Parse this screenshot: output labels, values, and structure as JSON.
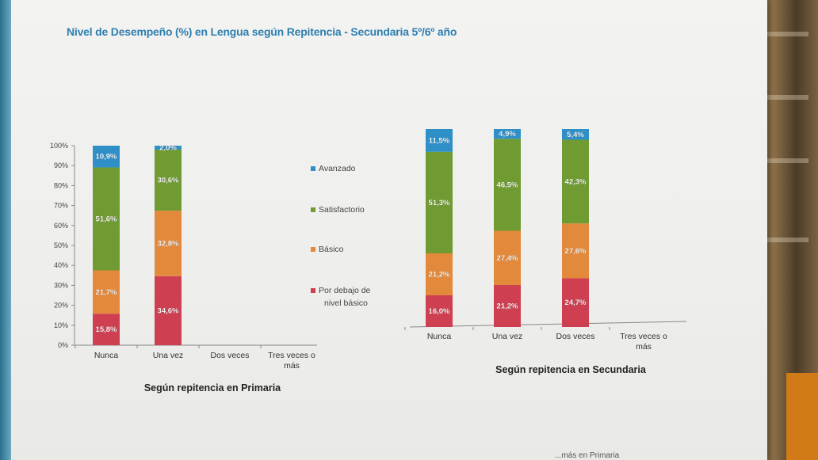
{
  "title": "Nivel de Desempeño (%) en Lengua según Repitencia - Secundaria 5º/6º año",
  "colors": {
    "Avanzado": "#2f8fc7",
    "Satisfactorio": "#6f9b32",
    "Básico": "#e3893b",
    "Por debajo de nivel básico": "#cf3f52"
  },
  "legend": [
    {
      "label": "Avanzado",
      "series": "Avanzado"
    },
    {
      "label": "Satisfactorio",
      "series": "Satisfactorio"
    },
    {
      "label": "Básico",
      "series": "Básico"
    },
    {
      "label": "Por debajo de",
      "label2": "nivel básico",
      "series": "Por debajo de nivel básico"
    }
  ],
  "footer_fragment": "...más en Primaria",
  "chart_data": [
    {
      "type": "bar",
      "stacked": true,
      "title": "",
      "xlabel": "Según repitencia en Primaria",
      "ylabel": "",
      "ylim": [
        0,
        100
      ],
      "yticks": [
        "0%",
        "10%",
        "20%",
        "30%",
        "40%",
        "50%",
        "60%",
        "70%",
        "80%",
        "90%",
        "100%"
      ],
      "categories": [
        "Nunca",
        "Una vez",
        "Dos veces",
        "Tres veces o más"
      ],
      "category_lines": [
        [
          "Nunca"
        ],
        [
          "Una vez"
        ],
        [
          "Dos veces"
        ],
        [
          "Tres veces o",
          "más"
        ]
      ],
      "series": [
        {
          "name": "Por debajo de nivel básico",
          "values": [
            15.8,
            34.6,
            null,
            null
          ],
          "labels": [
            "15,8%",
            "34,6%",
            "",
            ""
          ]
        },
        {
          "name": "Básico",
          "values": [
            21.7,
            32.8,
            null,
            null
          ],
          "labels": [
            "21,7%",
            "32,8%",
            "",
            ""
          ]
        },
        {
          "name": "Satisfactorio",
          "values": [
            51.6,
            30.6,
            null,
            null
          ],
          "labels": [
            "51,6%",
            "30,6%",
            "",
            ""
          ]
        },
        {
          "name": "Avanzado",
          "values": [
            10.9,
            2.0,
            null,
            null
          ],
          "labels": [
            "10,9%",
            "2,0%",
            "",
            ""
          ]
        }
      ],
      "grid": false,
      "legend": "right"
    },
    {
      "type": "bar",
      "stacked": true,
      "title": "",
      "xlabel": "Según repitencia en Secundaria",
      "ylabel": "",
      "ylim": [
        0,
        100
      ],
      "categories": [
        "Nunca",
        "Una vez",
        "Dos veces",
        "Tres veces o más"
      ],
      "category_lines": [
        [
          "Nunca"
        ],
        [
          "Una vez"
        ],
        [
          "Dos veces"
        ],
        [
          "Tres veces o",
          "más"
        ]
      ],
      "series": [
        {
          "name": "Por debajo de nivel básico",
          "values": [
            16.0,
            21.2,
            24.7,
            null
          ],
          "labels": [
            "16,0%",
            "21,2%",
            "24,7%",
            ""
          ]
        },
        {
          "name": "Básico",
          "values": [
            21.2,
            27.4,
            27.6,
            null
          ],
          "labels": [
            "21,2%",
            "27,4%",
            "27,6%",
            ""
          ]
        },
        {
          "name": "Satisfactorio",
          "values": [
            51.3,
            46.5,
            42.3,
            null
          ],
          "labels": [
            "51,3%",
            "46,5%",
            "42,3%",
            ""
          ]
        },
        {
          "name": "Avanzado",
          "values": [
            11.5,
            4.9,
            5.4,
            null
          ],
          "labels": [
            "11,5%",
            "4,9%",
            "5,4%",
            ""
          ]
        }
      ],
      "grid": false,
      "legend": "none"
    }
  ]
}
